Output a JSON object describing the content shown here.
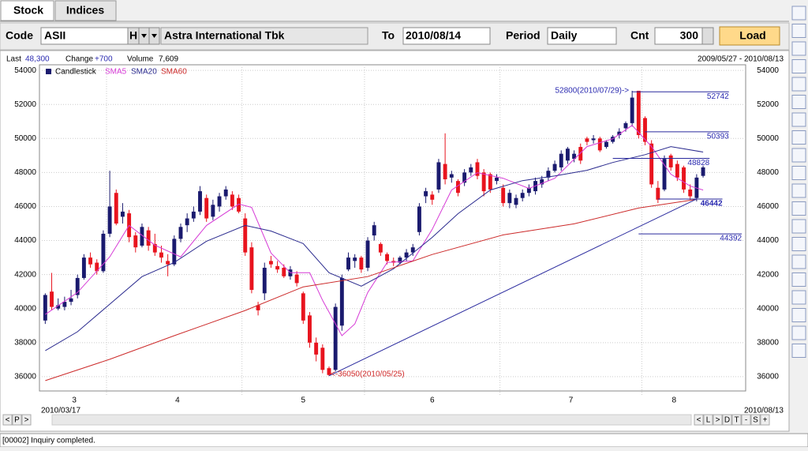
{
  "tabs": [
    "Stock",
    "Indices"
  ],
  "toolbar": {
    "code_label": "Code",
    "code": "ASII",
    "code_btn": "H",
    "name": "Astra International Tbk",
    "to_label": "To",
    "to": "2010/08/14",
    "period_label": "Period",
    "period": "Daily",
    "cnt_label": "Cnt",
    "cnt": "300",
    "load": "Load"
  },
  "info": {
    "last_label": "Last",
    "last": "48,300",
    "change_label": "Change",
    "change": "+700",
    "volume_label": "Volume",
    "volume": "7,609",
    "range": "2009/05/27 - 2010/08/13"
  },
  "chart_data": {
    "type": "candlestick",
    "legend": [
      "Candlestick",
      "SMA5",
      "SMA20",
      "SMA60"
    ],
    "up_color": "#1a1a6e",
    "down_color": "#e8141e",
    "candles": [
      [
        39300,
        40900,
        39100,
        40800
      ],
      [
        41000,
        42100,
        39900,
        40100
      ],
      [
        40000,
        40600,
        39900,
        40200
      ],
      [
        40100,
        40700,
        39900,
        40400
      ],
      [
        40400,
        41100,
        40200,
        40600
      ],
      [
        40800,
        42000,
        40600,
        41800
      ],
      [
        41800,
        43200,
        41700,
        43000
      ],
      [
        43000,
        43300,
        42400,
        42600
      ],
      [
        42700,
        42900,
        42000,
        42200
      ],
      [
        42200,
        44600,
        42100,
        44400
      ],
      [
        44400,
        48100,
        44200,
        46000
      ],
      [
        46800,
        47000,
        44900,
        45000
      ],
      [
        45400,
        46200,
        45000,
        45700
      ],
      [
        45600,
        45800,
        43900,
        44200
      ],
      [
        44300,
        44500,
        43300,
        43600
      ],
      [
        43700,
        45000,
        43600,
        44800
      ],
      [
        44600,
        44800,
        43400,
        43700
      ],
      [
        43800,
        44400,
        43100,
        43300
      ],
      [
        43300,
        43700,
        42700,
        43000
      ],
      [
        42800,
        43200,
        41900,
        42600
      ],
      [
        42600,
        44300,
        42500,
        44100
      ],
      [
        44100,
        45000,
        43900,
        44800
      ],
      [
        44900,
        45600,
        44500,
        45300
      ],
      [
        45300,
        46000,
        45100,
        45700
      ],
      [
        45700,
        47200,
        45500,
        46900
      ],
      [
        46500,
        46700,
        45100,
        45300
      ],
      [
        45400,
        46400,
        45200,
        46100
      ],
      [
        46000,
        46800,
        45700,
        46600
      ],
      [
        46600,
        47200,
        46400,
        47000
      ],
      [
        46700,
        46900,
        45800,
        46000
      ],
      [
        46500,
        46700,
        45600,
        45700
      ],
      [
        45300,
        45600,
        43100,
        43300
      ],
      [
        43600,
        43900,
        40900,
        41100
      ],
      [
        40200,
        40400,
        39600,
        39900
      ],
      [
        40900,
        42700,
        40500,
        42400
      ],
      [
        42800,
        43100,
        42400,
        42600
      ],
      [
        42500,
        42800,
        42100,
        42300
      ],
      [
        42400,
        42600,
        41800,
        41900
      ],
      [
        41900,
        42500,
        41700,
        42300
      ],
      [
        42000,
        42200,
        41300,
        41500
      ],
      [
        40900,
        41000,
        39100,
        39300
      ],
      [
        39600,
        39800,
        37700,
        38000
      ],
      [
        38000,
        38300,
        36900,
        37300
      ],
      [
        37700,
        37900,
        36200,
        36400
      ],
      [
        36500,
        36600,
        36050,
        36100
      ],
      [
        36400,
        40300,
        36300,
        40100
      ],
      [
        39000,
        42000,
        38700,
        41800
      ],
      [
        42300,
        43300,
        42200,
        43000
      ],
      [
        42800,
        43200,
        42400,
        43000
      ],
      [
        43000,
        43100,
        42100,
        42300
      ],
      [
        42400,
        44200,
        42200,
        44000
      ],
      [
        44300,
        45100,
        44000,
        44900
      ],
      [
        43800,
        43900,
        43100,
        43300
      ],
      [
        43200,
        43300,
        42600,
        42800
      ],
      [
        42800,
        43000,
        42500,
        42700
      ],
      [
        42700,
        43100,
        42600,
        43000
      ],
      [
        43000,
        43500,
        42800,
        43300
      ],
      [
        43300,
        43800,
        43100,
        43600
      ],
      [
        44500,
        46200,
        44300,
        46000
      ],
      [
        46600,
        47100,
        46200,
        46900
      ],
      [
        46700,
        46900,
        46100,
        46400
      ],
      [
        47000,
        48800,
        46800,
        48600
      ],
      [
        48500,
        50300,
        47300,
        47600
      ],
      [
        47700,
        48100,
        47400,
        47900
      ],
      [
        47500,
        47600,
        46600,
        46800
      ],
      [
        47400,
        48200,
        47200,
        48000
      ],
      [
        48000,
        48500,
        47800,
        48300
      ],
      [
        48600,
        48800,
        47600,
        47800
      ],
      [
        48000,
        48200,
        46600,
        46900
      ],
      [
        47900,
        48000,
        46800,
        47000
      ],
      [
        47500,
        47900,
        47300,
        47700
      ],
      [
        47100,
        47300,
        46000,
        46200
      ],
      [
        46200,
        47000,
        45900,
        46800
      ],
      [
        46100,
        46700,
        45900,
        46500
      ],
      [
        46500,
        47000,
        46300,
        46800
      ],
      [
        46800,
        47300,
        46600,
        47100
      ],
      [
        46900,
        47700,
        46700,
        47500
      ],
      [
        47300,
        47800,
        47100,
        47600
      ],
      [
        47700,
        48300,
        47500,
        48100
      ],
      [
        48100,
        48700,
        48000,
        48500
      ],
      [
        48300,
        49300,
        48100,
        49100
      ],
      [
        48700,
        49500,
        48500,
        49400
      ],
      [
        48800,
        49300,
        48600,
        49100
      ],
      [
        49500,
        49700,
        48500,
        48700
      ],
      [
        50000,
        50100,
        49600,
        49800
      ],
      [
        49900,
        50200,
        49700,
        50000
      ],
      [
        50000,
        50100,
        49200,
        49300
      ],
      [
        49500,
        49900,
        49400,
        49800
      ],
      [
        49800,
        50200,
        49700,
        50100
      ],
      [
        50200,
        50600,
        50000,
        50400
      ],
      [
        50600,
        51000,
        50400,
        50900
      ],
      [
        50900,
        52800,
        50700,
        52400
      ],
      [
        52800,
        52800,
        50000,
        50200
      ],
      [
        51200,
        51300,
        49600,
        49800
      ],
      [
        49700,
        49900,
        47100,
        47300
      ],
      [
        47100,
        47500,
        46200,
        46400
      ],
      [
        47000,
        49000,
        46900,
        48800
      ],
      [
        49000,
        49100,
        48100,
        48300
      ],
      [
        48500,
        48700,
        47500,
        47700
      ],
      [
        48300,
        48400,
        46800,
        47000
      ],
      [
        47000,
        47300,
        46400,
        46600
      ],
      [
        46500,
        47900,
        46300,
        47700
      ],
      [
        47800,
        48400,
        47700,
        48300
      ]
    ],
    "series": [
      {
        "name": "SMA5",
        "color": "#d63ad6",
        "x": [
          0,
          5,
          10,
          13,
          17,
          21,
          25,
          30,
          32,
          35,
          38,
          41,
          43,
          46,
          48,
          50,
          53,
          57,
          60,
          63,
          67,
          71,
          75,
          79,
          84,
          88,
          91,
          94,
          97,
          100,
          102
        ],
        "values": [
          39660,
          40950,
          43040,
          44890,
          43730,
          43040,
          44890,
          46140,
          45950,
          43270,
          42110,
          42110,
          40490,
          38410,
          39100,
          40950,
          42710,
          42800,
          44660,
          46970,
          47990,
          47660,
          47060,
          47660,
          49520,
          49980,
          50770,
          49520,
          47900,
          47200,
          46970
        ]
      },
      {
        "name": "SMA20",
        "color": "#2a2a8e",
        "x": [
          0,
          5,
          10,
          15,
          20,
          25,
          31,
          35,
          40,
          44,
          49,
          54,
          60,
          64,
          69,
          74,
          79,
          84,
          88,
          93,
          97,
          102
        ],
        "values": [
          37530,
          38640,
          40260,
          41880,
          42710,
          43960,
          44890,
          44560,
          43820,
          42110,
          41320,
          42340,
          44190,
          45580,
          46970,
          47520,
          47800,
          48130,
          48590,
          49050,
          49520,
          49200
        ]
      },
      {
        "name": "SMA60",
        "color": "#cc2a2a",
        "x": [
          0,
          10,
          20,
          31,
          40,
          50,
          60,
          71,
          82,
          92,
          101
        ],
        "values": [
          35770,
          37020,
          38410,
          39890,
          41280,
          41880,
          43180,
          44330,
          44980,
          45910,
          46420
        ]
      }
    ],
    "hlines": [
      {
        "value": 52742,
        "x": [
          91,
          106
        ]
      },
      {
        "value": 50393,
        "x": [
          93,
          106
        ]
      },
      {
        "value": 48828,
        "x": [
          88,
          103
        ]
      },
      {
        "value": 46442,
        "x": [
          95,
          105
        ]
      },
      {
        "value": 44392,
        "x": [
          92,
          108
        ]
      }
    ],
    "trendline": {
      "x": [
        44,
        101
      ],
      "values": [
        36050,
        46442
      ]
    },
    "annotations": [
      {
        "text": "52800(2010/07/29)->",
        "x": 91,
        "value": 52800
      },
      {
        "text": "<-36050(2010/05/25)",
        "x": 44,
        "value": 36050
      }
    ],
    "xlim": [
      -0.9,
      108.6
    ],
    "ylim": [
      35160,
      54330
    ],
    "yticks": [
      36000,
      38000,
      40000,
      42000,
      44000,
      46000,
      48000,
      50000,
      52000,
      54000
    ],
    "xticks": [
      {
        "value": 4.5,
        "label": "3"
      },
      {
        "value": 20.5,
        "label": "4"
      },
      {
        "value": 40,
        "label": "5"
      },
      {
        "value": 60,
        "label": "6"
      },
      {
        "value": 81.5,
        "label": "7"
      },
      {
        "value": 97.5,
        "label": "8"
      }
    ],
    "xgrid": [
      9.5,
      30.5,
      49.5,
      70.5,
      92.5
    ],
    "start_date": "2010/03/17",
    "end_date": "2010/08/13"
  },
  "nav_left": [
    "<",
    "P",
    ">"
  ],
  "nav_right": [
    "<",
    "L",
    ">",
    "D",
    "T",
    "-",
    "S",
    "+"
  ],
  "status": "[00002] Inquiry completed."
}
